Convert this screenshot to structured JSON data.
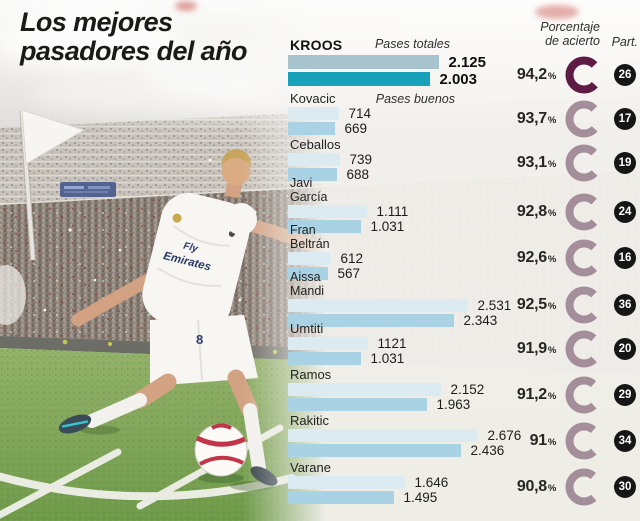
{
  "title": {
    "line1": "Los mejores",
    "line2": "pasadores del año"
  },
  "headers": {
    "pases_totales": "Pases totales",
    "pases_buenos": "Pases buenos",
    "porcentaje_line1": "Porcentaje",
    "porcentaje_line2": "de acierto",
    "part": "Part."
  },
  "misc": {
    "percent_sign": "%"
  },
  "photo": {
    "jersey_line1": "Fly",
    "jersey_line2": "Emirates",
    "shorts_number": "8"
  },
  "colors": {
    "bar_total": "#dcebf2",
    "bar_good": "#a9d3e4",
    "bar_total_highlight": "#a7c3ce",
    "bar_good_highlight": "#18a2b9",
    "ring": "#a48e99",
    "ring_highlight": "#5e1c45",
    "badge_bg": "#161616",
    "badge_text": "#ffffff"
  },
  "players": [
    {
      "name": "KROOS",
      "total": "2.125",
      "good": "2.003",
      "pct": "94,2",
      "part": "26",
      "total_num": 2125,
      "good_num": 2003,
      "pct_num": 94.2,
      "highlight": true
    },
    {
      "name": "Kovacic",
      "total": "714",
      "good": "669",
      "pct": "93,7",
      "part": "17",
      "total_num": 714,
      "good_num": 669,
      "pct_num": 93.7,
      "highlight": false
    },
    {
      "name": "Ceballos",
      "total": "739",
      "good": "688",
      "pct": "93,1",
      "part": "19",
      "total_num": 739,
      "good_num": 688,
      "pct_num": 93.1,
      "highlight": false
    },
    {
      "name": "Javi",
      "name2": "García",
      "total": "1.111",
      "good": "1.031",
      "pct": "92,8",
      "part": "24",
      "total_num": 1111,
      "good_num": 1031,
      "pct_num": 92.8,
      "highlight": false
    },
    {
      "name": "Fran",
      "name2": "Beltrán",
      "total": "612",
      "good": "567",
      "pct": "92,6",
      "part": "16",
      "total_num": 612,
      "good_num": 567,
      "pct_num": 92.6,
      "highlight": false
    },
    {
      "name": "Aissa",
      "name2": "Mandi",
      "total": "2.531",
      "good": "2.343",
      "pct": "92,5",
      "part": "36",
      "total_num": 2531,
      "good_num": 2343,
      "pct_num": 92.5,
      "highlight": false
    },
    {
      "name": "Umtiti",
      "total": "1121",
      "good": "1.031",
      "pct": "91,9",
      "part": "20",
      "total_num": 1121,
      "good_num": 1031,
      "pct_num": 91.9,
      "highlight": false
    },
    {
      "name": "Ramos",
      "total": "2.152",
      "good": "1.963",
      "pct": "91,2",
      "part": "29",
      "total_num": 2152,
      "good_num": 1963,
      "pct_num": 91.2,
      "highlight": false
    },
    {
      "name": "Rakitic",
      "total": "2.676",
      "good": "2.436",
      "pct": "91",
      "part": "34",
      "total_num": 2676,
      "good_num": 2436,
      "pct_num": 91,
      "highlight": false
    },
    {
      "name": "Varane",
      "total": "1.646",
      "good": "1.495",
      "pct": "90,8",
      "part": "30",
      "total_num": 1646,
      "good_num": 1495,
      "pct_num": 90.8,
      "highlight": false
    }
  ],
  "chart_data": {
    "type": "bar",
    "orientation": "horizontal",
    "title": "Los mejores pasadores del año",
    "categories": [
      "Kroos",
      "Kovacic",
      "Ceballos",
      "Javi García",
      "Fran Beltrán",
      "Aissa Mandi",
      "Umtiti",
      "Ramos",
      "Rakitic",
      "Varane"
    ],
    "series": [
      {
        "name": "Pases totales",
        "values": [
          2125,
          714,
          739,
          1111,
          612,
          2531,
          1121,
          2152,
          2676,
          1646
        ]
      },
      {
        "name": "Pases buenos",
        "values": [
          2003,
          669,
          688,
          1031,
          567,
          2343,
          1031,
          1963,
          2436,
          1495
        ]
      }
    ],
    "porcentaje_de_acierto": [
      94.2,
      93.7,
      93.1,
      92.8,
      92.6,
      92.5,
      91.9,
      91.2,
      91,
      90.8
    ],
    "partidos": [
      26,
      17,
      19,
      24,
      16,
      36,
      20,
      29,
      34,
      30
    ],
    "xlim": [
      0,
      2800
    ],
    "grid": false,
    "legend_position": "inline-top"
  }
}
